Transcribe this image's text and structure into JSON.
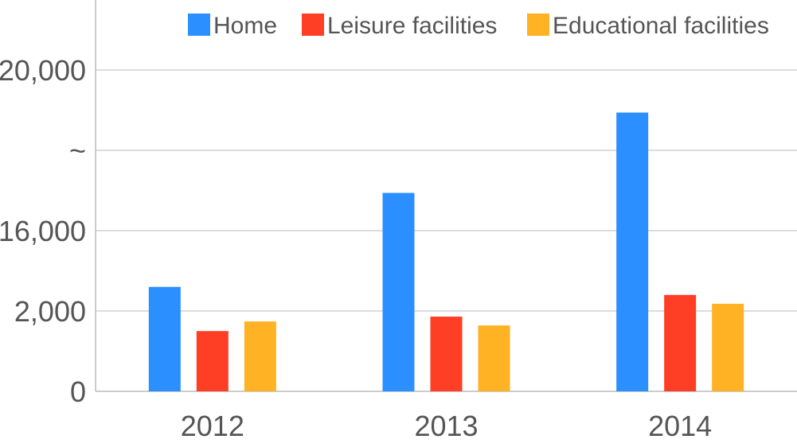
{
  "chart_data": {
    "type": "bar",
    "categories": [
      "2012",
      "2013",
      "2014"
    ],
    "series": [
      {
        "name": "Home",
        "color": "#2b8fff",
        "values": [
          1.3,
          2.47,
          3.47
        ]
      },
      {
        "name": "Leisure facilities",
        "color": "#ff3e26",
        "values": [
          0.75,
          0.93,
          1.2
        ]
      },
      {
        "name": "Educational facilities",
        "color": "#ffb224",
        "values": [
          0.87,
          0.82,
          1.09
        ]
      }
    ],
    "ytick_labels": [
      "0",
      "2,000",
      "16,000",
      "~",
      "20,000"
    ],
    "ylim": [
      0,
      4
    ],
    "grid": true,
    "legend_position": "top-right",
    "title": "",
    "xlabel": "",
    "ylabel": ""
  }
}
